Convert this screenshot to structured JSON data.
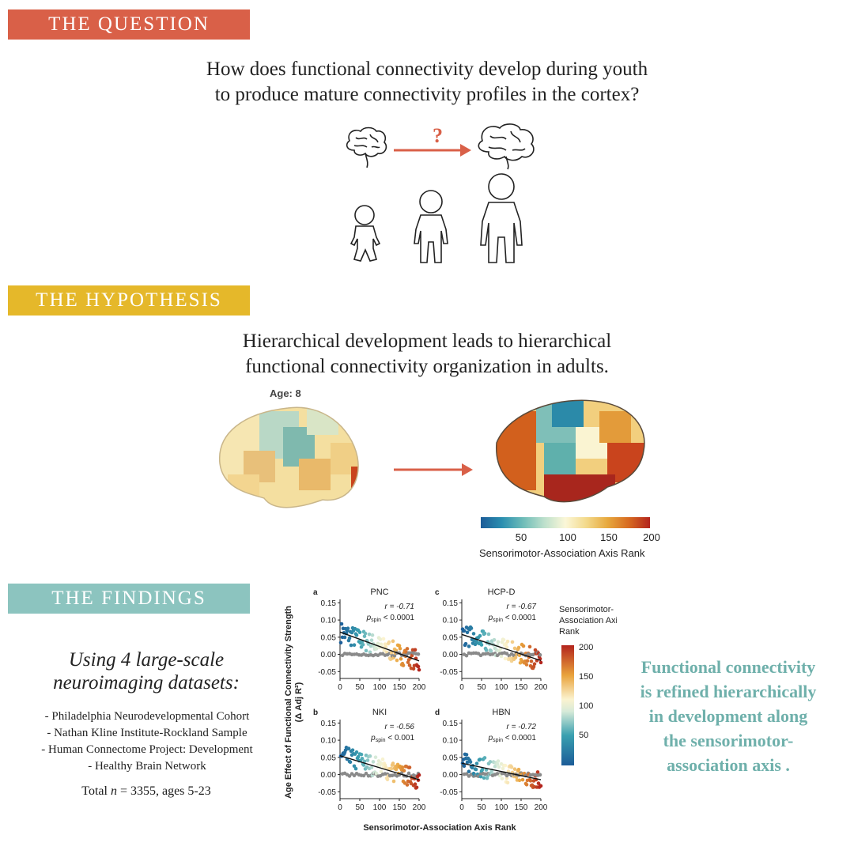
{
  "sections": {
    "question": {
      "banner": "THE QUESTION",
      "text_line1": "How does functional connectivity develop during youth",
      "text_line2": "to produce mature connectivity profiles in the cortex?",
      "question_mark": "?"
    },
    "hypothesis": {
      "banner": "THE HYPOTHESIS",
      "text_line1": "Hierarchical development leads to hierarchical",
      "text_line2": "functional connectivity organization in adults.",
      "age_label": "Age: 8"
    },
    "findings": {
      "banner": "THE FINDINGS",
      "datasets_title_line1": "Using 4 large-scale",
      "datasets_title_line2": "neuroimaging datasets:",
      "datasets": [
        "- Philadelphia Neurodevelopmental Cohort",
        "- Nathan Kline Institute-Rockland Sample",
        "- Human Connectome Project: Development",
        "- Healthy Brain Network"
      ],
      "total_prefix": "Total ",
      "total_n": "n",
      "total_suffix": " = 3355, ages 5-23",
      "conclusion_line1": "Functional connectivity",
      "conclusion_line2": "is refined hierarchically",
      "conclusion_line3": "in development along",
      "conclusion_line4": "the sensorimotor-",
      "conclusion_line5": "association axis ."
    }
  },
  "colorbar": {
    "ticks": [
      "50",
      "100",
      "150",
      "200"
    ],
    "title": "Sensorimotor-Association Axis Rank"
  },
  "chart_data": {
    "type": "scatter",
    "ylabel_line1": "Age Effect of Functional Connectivity Strength",
    "ylabel_line2": "(Δ Adj R²)",
    "xlabel": "Sensorimotor-Association Axis Rank",
    "xlim": [
      0,
      200
    ],
    "ylim": [
      -0.07,
      0.16
    ],
    "xticks": [
      "0",
      "50",
      "100",
      "150",
      "200"
    ],
    "yticks": [
      "0.15",
      "0.10",
      "0.05",
      "0.00",
      "-0.05"
    ],
    "legend_title_line1": "Sensorimotor-",
    "legend_title_line2": "Association Axis",
    "legend_title_line3": "Rank",
    "legend_ticks": [
      "200",
      "150",
      "100",
      "50"
    ],
    "panels": [
      {
        "letter": "a",
        "title": "PNC",
        "r": "r = -0.71",
        "p_prefix": "p",
        "p_sub": "spin",
        "p_val": "< 0.0001",
        "intercept": 0.065,
        "slope": -0.00042
      },
      {
        "letter": "c",
        "title": "HCP-D",
        "r": "r = -0.67",
        "p_prefix": "p",
        "p_sub": "spin",
        "p_val": "< 0.0001",
        "intercept": 0.058,
        "slope": -0.00038
      },
      {
        "letter": "b",
        "title": "NKI",
        "r": "r = -0.56",
        "p_prefix": "p",
        "p_sub": "spin",
        "p_val": "< 0.001",
        "intercept": 0.055,
        "slope": -0.00035
      },
      {
        "letter": "d",
        "title": "HBN",
        "r": "r = -0.72",
        "p_prefix": "p",
        "p_sub": "spin",
        "p_val": "< 0.0001",
        "intercept": 0.033,
        "slope": -0.00024
      }
    ]
  }
}
